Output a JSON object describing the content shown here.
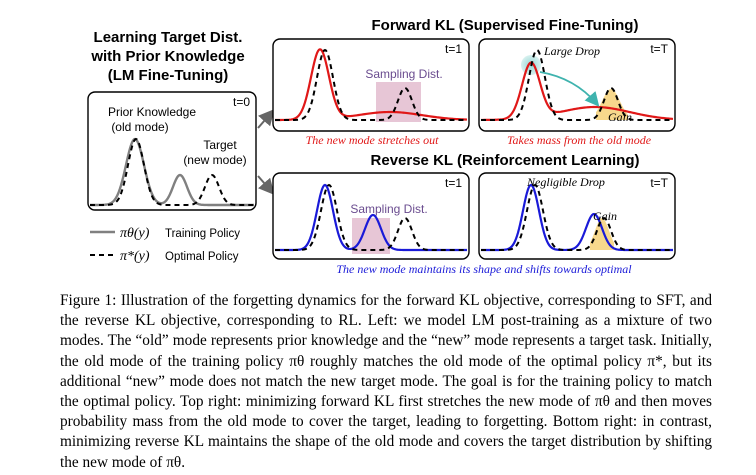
{
  "figure": {
    "left_title_line1": "Learning Target Dist.",
    "left_title_line2": "with Prior Knowledge",
    "left_title_line3": "(LM Fine-Tuning)",
    "forward_title": "Forward KL (Supervised Fine-Tuning)",
    "reverse_title": "Reverse KL (Reinforcement Learning)",
    "t0": "t=0",
    "t1": "t=1",
    "tT": "t=T",
    "prior_line1": "Prior Knowledge",
    "prior_line2": "(old mode)",
    "target_line1": "Target",
    "target_line2": "(new mode)",
    "sampling_dist": "Sampling Dist.",
    "large_drop": "Large Drop",
    "gain": "Gain",
    "negligible_drop": "Negligible Drop",
    "fwd_note_1": "The new mode stretches out",
    "fwd_note_2": "Takes mass from the old mode",
    "rev_note": "The new mode maintains its shape and shifts towards optimal",
    "legend_training_symbol": "πθ(y)",
    "legend_training_label": "Training Policy",
    "legend_optimal_symbol": "π*(y)",
    "legend_optimal_label": "Optimal Policy",
    "colors": {
      "training_gray": "#808080",
      "forward_red": "#e01818",
      "reverse_blue": "#1a1ad8",
      "sampling_fill": "#e7c6d6",
      "gain_fill": "#f7d88c",
      "drop_fill": "#8fd6d2",
      "arrow_teal": "#3fb3ae",
      "arrow_gray": "#666666"
    }
  },
  "caption": {
    "text": "Figure 1: Illustration of the forgetting dynamics for the forward KL objective, corresponding to SFT, and the reverse KL objective, corresponding to RL. Left: we model LM post-training as a mixture of two modes. The “old” mode represents prior knowledge and the “new” mode represents a target task. Initially, the old mode of the training policy πθ roughly matches the old mode of the optimal policy π*, but its additional “new” mode does not match the new target mode. The goal is for the training policy to match the optimal policy. Top right: minimizing forward KL first stretches the new mode of πθ and then moves probability mass from the old mode to cover the target, leading to forgetting. Bottom right: in contrast, minimizing reverse KL maintains the shape of the old mode and covers the target distribution by shifting the new mode of πθ."
  }
}
